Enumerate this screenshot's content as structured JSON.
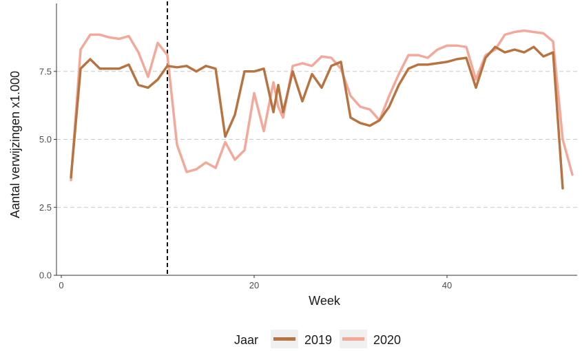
{
  "chart_data": {
    "type": "line",
    "xlabel": "Week",
    "ylabel": "Aantal verwijzingen x1.000",
    "xlim": [
      -0.5,
      53.5
    ],
    "ylim": [
      0,
      10
    ],
    "x_ticks": [
      0,
      20,
      40
    ],
    "y_ticks": [
      0,
      2.5,
      5,
      7.5
    ],
    "x_tick_labels": [
      "0",
      "20",
      "40"
    ],
    "y_tick_labels": [
      "0.0",
      "2.5",
      "5.0",
      "7.5"
    ],
    "grid": "horizontal dashed at y ticks",
    "vline": 11,
    "legend": {
      "title": "Jaar",
      "position": "bottom"
    },
    "series": [
      {
        "name": "2019",
        "color": "#b87440",
        "x": [
          1,
          2,
          3,
          4,
          5,
          6,
          7,
          8,
          9,
          10,
          11,
          12,
          13,
          14,
          15,
          16,
          17,
          18,
          19,
          20,
          21,
          22,
          22.5,
          23,
          24,
          25,
          26,
          27,
          28,
          29,
          30,
          31,
          32,
          33,
          34,
          35,
          36,
          37,
          38,
          39,
          40,
          41,
          42,
          43,
          44,
          45,
          46,
          47,
          48,
          49,
          50,
          51,
          52
        ],
        "y": [
          3.6,
          7.6,
          7.95,
          7.6,
          7.6,
          7.6,
          7.75,
          7.0,
          6.9,
          7.2,
          7.7,
          7.65,
          7.7,
          7.5,
          7.7,
          7.6,
          5.1,
          5.9,
          7.5,
          7.5,
          7.6,
          6.0,
          7.0,
          6.0,
          7.5,
          6.4,
          7.4,
          6.9,
          7.7,
          7.85,
          5.8,
          5.6,
          5.5,
          5.7,
          6.2,
          7.0,
          7.6,
          7.75,
          7.75,
          7.8,
          7.85,
          7.95,
          8.0,
          6.9,
          8.0,
          8.4,
          8.2,
          8.3,
          8.2,
          8.4,
          8.05,
          8.2,
          3.2
        ]
      },
      {
        "name": "2020",
        "color": "#f4a89a",
        "x": [
          1,
          2,
          3,
          4,
          5,
          6,
          7,
          8,
          9,
          10,
          11,
          12,
          13,
          14,
          15,
          16,
          17,
          18,
          19,
          20,
          21,
          22,
          22.5,
          23,
          24,
          25,
          26,
          27,
          28,
          29,
          30,
          31,
          32,
          33,
          34,
          35,
          36,
          37,
          38,
          39,
          40,
          41,
          42,
          43,
          44,
          45,
          46,
          47,
          48,
          49,
          50,
          51,
          52,
          53
        ],
        "y": [
          3.5,
          8.3,
          8.85,
          8.85,
          8.75,
          8.7,
          8.8,
          8.2,
          7.3,
          8.55,
          8.1,
          4.8,
          3.8,
          3.9,
          4.15,
          3.95,
          4.9,
          4.25,
          4.6,
          6.7,
          5.3,
          7.1,
          6.2,
          5.8,
          7.7,
          7.8,
          7.7,
          8.05,
          8.0,
          7.6,
          6.6,
          6.2,
          6.1,
          5.7,
          6.6,
          7.4,
          8.1,
          8.1,
          8.0,
          8.3,
          8.45,
          8.45,
          8.4,
          7.2,
          8.1,
          8.3,
          8.85,
          8.95,
          9.0,
          8.95,
          8.9,
          8.6,
          5.0,
          3.7
        ]
      }
    ]
  }
}
